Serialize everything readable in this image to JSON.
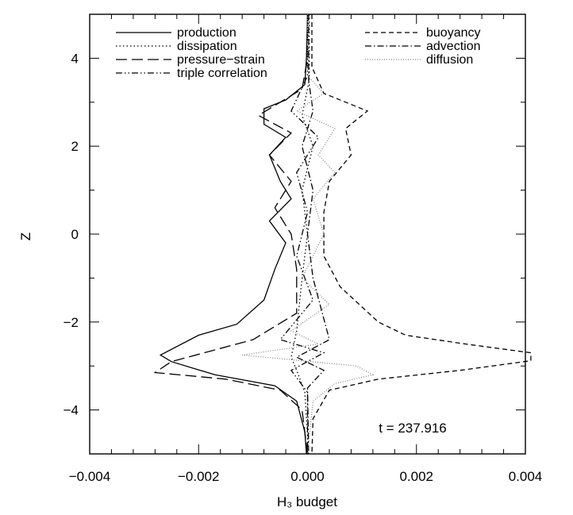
{
  "chart_data": {
    "type": "line",
    "title": "",
    "xlabel": "H₃ budget",
    "ylabel": "Z",
    "xlim": [
      -0.004,
      0.004
    ],
    "ylim": [
      -5,
      5
    ],
    "xticks": [
      "−0.004",
      "−0.002",
      "0.000",
      "0.002",
      "0.004"
    ],
    "yticks": [
      "−4",
      "−2",
      "0",
      "2",
      "4"
    ],
    "annotation": "t = 237.916",
    "legend_placement": "top",
    "series": [
      {
        "name": "production",
        "dash": "solid",
        "color": "#000000",
        "points": [
          [
            0,
            5
          ],
          [
            -2e-05,
            4
          ],
          [
            -5e-05,
            3.4
          ],
          [
            -0.0004,
            3.05
          ],
          [
            -0.0008,
            2.85
          ],
          [
            -0.0008,
            2.5
          ],
          [
            -0.0004,
            2.2
          ],
          [
            -0.0007,
            1.8
          ],
          [
            -0.0005,
            1.2
          ],
          [
            -0.0003,
            0.8
          ],
          [
            -0.0007,
            0.3
          ],
          [
            -0.0004,
            -0.2
          ],
          [
            -0.0006,
            -0.8
          ],
          [
            -0.0008,
            -1.5
          ],
          [
            -0.0013,
            -2.05
          ],
          [
            -0.002,
            -2.3
          ],
          [
            -0.0027,
            -2.75
          ],
          [
            -0.0025,
            -2.9
          ],
          [
            -0.0017,
            -3.2
          ],
          [
            -0.0006,
            -3.45
          ],
          [
            -0.0002,
            -3.8
          ],
          [
            -5e-05,
            -4.5
          ],
          [
            -2e-05,
            -5
          ]
        ]
      },
      {
        "name": "dissipation",
        "dash": "dotted",
        "color": "#000000",
        "points": [
          [
            3e-05,
            5
          ],
          [
            3e-05,
            3.5
          ],
          [
            -0.0001,
            2.7
          ],
          [
            0.0001,
            2.0
          ],
          [
            -0.0001,
            1.0
          ],
          [
            0,
            0
          ],
          [
            -0.0001,
            -1.0
          ],
          [
            -0.0002,
            -2.2
          ],
          [
            -0.0003,
            -2.8
          ],
          [
            -0.0002,
            -3.1
          ],
          [
            -5e-05,
            -3.6
          ],
          [
            2e-05,
            -5
          ]
        ]
      },
      {
        "name": "pressure−strain",
        "dash": "long-dash",
        "color": "#000000",
        "points": [
          [
            0,
            5
          ],
          [
            0,
            4
          ],
          [
            -0.0001,
            3.3
          ],
          [
            -0.0009,
            2.7
          ],
          [
            -0.0003,
            2.3
          ],
          [
            -0.0007,
            1.8
          ],
          [
            -0.0003,
            1.2
          ],
          [
            -0.0006,
            0.6
          ],
          [
            -0.0003,
            0
          ],
          [
            -0.0002,
            -0.8
          ],
          [
            -0.0002,
            -1.8
          ],
          [
            -0.001,
            -2.4
          ],
          [
            -0.0025,
            -2.9
          ],
          [
            -0.0028,
            -3.15
          ],
          [
            -0.0015,
            -3.3
          ],
          [
            -0.0005,
            -3.55
          ],
          [
            -0.0001,
            -4
          ],
          [
            0,
            -5
          ]
        ]
      },
      {
        "name": "triple correlation",
        "dash": "dash-dot-dot",
        "color": "#000000",
        "points": [
          [
            0,
            5
          ],
          [
            0,
            3.6
          ],
          [
            -0.0003,
            2.8
          ],
          [
            0.0002,
            2.2
          ],
          [
            -0.0002,
            1.4
          ],
          [
            0,
            0.5
          ],
          [
            -0.0002,
            -0.5
          ],
          [
            0.0001,
            -1.5
          ],
          [
            -0.0005,
            -2.4
          ],
          [
            0.0003,
            -2.7
          ],
          [
            -0.0003,
            -3.1
          ],
          [
            0,
            -3.6
          ],
          [
            0,
            -5
          ]
        ]
      },
      {
        "name": "buoyancy",
        "dash": "short-dash",
        "color": "#000000",
        "points": [
          [
            8e-05,
            5
          ],
          [
            8e-05,
            3.8
          ],
          [
            0.0003,
            3.2
          ],
          [
            0.0011,
            2.8
          ],
          [
            0.0007,
            2.4
          ],
          [
            0.0008,
            1.8
          ],
          [
            0.0004,
            1.2
          ],
          [
            0.0003,
            0.5
          ],
          [
            0.0003,
            -0.5
          ],
          [
            0.0006,
            -1.2
          ],
          [
            0.0013,
            -2.0
          ],
          [
            0.0018,
            -2.3
          ],
          [
            0.0029,
            -2.5
          ],
          [
            0.0041,
            -2.7
          ],
          [
            0.0041,
            -2.88
          ],
          [
            0.0028,
            -3.1
          ],
          [
            0.0013,
            -3.3
          ],
          [
            0.0004,
            -3.55
          ],
          [
            0.0001,
            -4.2
          ],
          [
            8e-05,
            -5
          ]
        ]
      },
      {
        "name": "advection",
        "dash": "dash-dot",
        "color": "#000000",
        "points": [
          [
            2e-05,
            5
          ],
          [
            2e-05,
            3.5
          ],
          [
            0.0001,
            2.8
          ],
          [
            -0.0001,
            2.0
          ],
          [
            0.0001,
            1.0
          ],
          [
            0,
            0
          ],
          [
            0.0001,
            -1.0
          ],
          [
            0.0004,
            -2.4
          ],
          [
            -0.0002,
            -2.8
          ],
          [
            0.0003,
            -3.1
          ],
          [
            0,
            -3.5
          ],
          [
            2e-05,
            -5
          ]
        ]
      },
      {
        "name": "diffusion",
        "dash": "fine-dotted",
        "color": "#888888",
        "points": [
          [
            0,
            5
          ],
          [
            0,
            3.6
          ],
          [
            0.0003,
            3.2
          ],
          [
            -0.0002,
            2.8
          ],
          [
            0.0005,
            2.4
          ],
          [
            0.0002,
            1.8
          ],
          [
            0.0005,
            1.4
          ],
          [
            0.0001,
            0.8
          ],
          [
            0.0003,
            0
          ],
          [
            -0.0001,
            -1.0
          ],
          [
            0.0004,
            -1.6
          ],
          [
            -0.0003,
            -2.2
          ],
          [
            0.0002,
            -2.5
          ],
          [
            -0.0012,
            -2.75
          ],
          [
            0.0009,
            -3.0
          ],
          [
            0.0012,
            -3.2
          ],
          [
            0.0005,
            -3.4
          ],
          [
            0.0001,
            -3.8
          ],
          [
            0,
            -5
          ]
        ]
      }
    ]
  }
}
